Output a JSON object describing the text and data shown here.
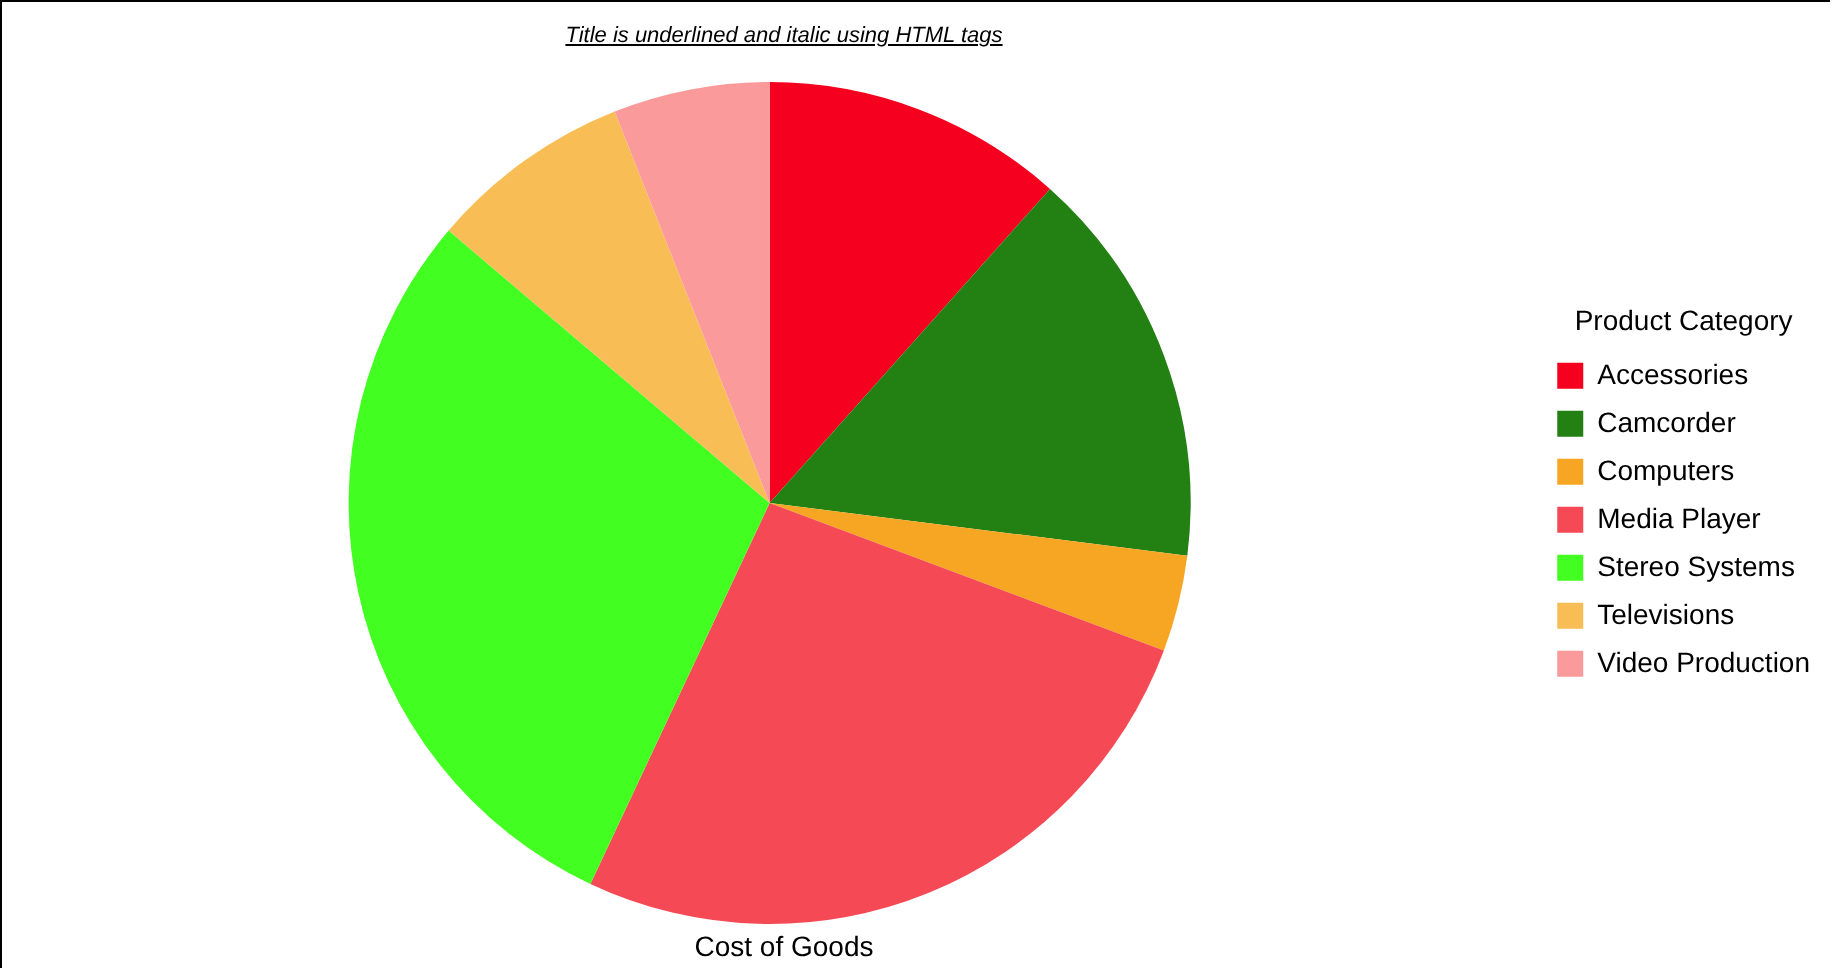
{
  "chart_data": {
    "type": "pie",
    "title": "Title is underlined and italic using HTML tags",
    "xlabel": "Cost of Goods",
    "legend_title": "Product Category",
    "legend": "right",
    "categories": [
      "Accessories",
      "Camcorder",
      "Computers",
      "Media Player",
      "Stereo Systems",
      "Televisions",
      "Video Production"
    ],
    "values": [
      11.6,
      15.4,
      3.7,
      26.3,
      29.2,
      7.8,
      6.0
    ],
    "colors": [
      "#f5001e",
      "#238013",
      "#f6a623",
      "#f54a55",
      "#42ff21",
      "#f8be55",
      "#fb9a9a"
    ]
  }
}
